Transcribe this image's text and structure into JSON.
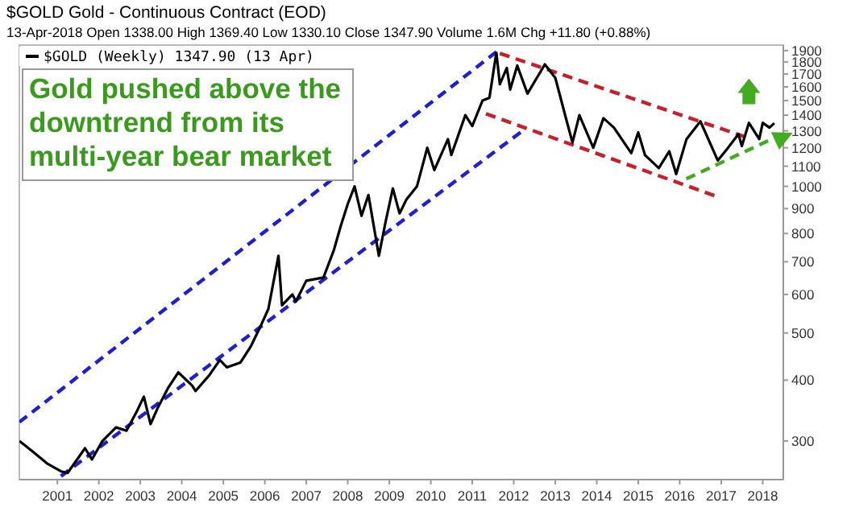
{
  "chart_data": {
    "type": "line",
    "title": "$GOLD Gold - Continuous Contract (EOD)",
    "subtitle": "13-Apr-2018   Open 1338.00  High 1369.40  Low 1330.10  Close 1347.90  Volume 1.6M  Chg +11.80 (+0.88%)",
    "annotations": [
      "Gold pushed above the downtrend from its multi-year bear market"
    ],
    "log": true,
    "legend": "top left",
    "marker": "none",
    "xlim": [
      "2000-02",
      "2018-07"
    ],
    "xticks": [
      "2001",
      "2002",
      "2003",
      "2004",
      "2005",
      "2006",
      "2007",
      "2008",
      "2009",
      "2010",
      "2011",
      "2012",
      "2013",
      "2014",
      "2015",
      "2016",
      "2017",
      "2018"
    ],
    "ylim": [
      250,
      1950
    ],
    "yticks": [
      300,
      400,
      500,
      600,
      700,
      800,
      900,
      1000,
      1100,
      1200,
      1300,
      1400,
      1500,
      1600,
      1700,
      1800,
      1900
    ],
    "series": [
      {
        "name": "$GOLD (Weekly) 1347.90 (13 Apr)",
        "color": "#000000",
        "line_style": "solid",
        "x": [
          "2000-02",
          "2000-06",
          "2000-10",
          "2001-02",
          "2001-04",
          "2001-09",
          "2001-11",
          "2002-02",
          "2002-06",
          "2002-09",
          "2002-12",
          "2003-02",
          "2003-04",
          "2003-06",
          "2003-09",
          "2003-12",
          "2004-04",
          "2004-05",
          "2004-09",
          "2004-12",
          "2005-02",
          "2005-06",
          "2005-09",
          "2005-12",
          "2006-02",
          "2006-05",
          "2006-06",
          "2006-09",
          "2006-10",
          "2007-01",
          "2007-06",
          "2007-09",
          "2007-11",
          "2008-01",
          "2008-03",
          "2008-05",
          "2008-07",
          "2008-10",
          "2008-12",
          "2009-02",
          "2009-04",
          "2009-06",
          "2009-09",
          "2009-12",
          "2010-02",
          "2010-06",
          "2010-07",
          "2010-11",
          "2011-01",
          "2011-04",
          "2011-06",
          "2011-08",
          "2011-09",
          "2011-11",
          "2011-12",
          "2012-02",
          "2012-05",
          "2012-10",
          "2013-01",
          "2013-04",
          "2013-06",
          "2013-08",
          "2013-12",
          "2014-03",
          "2014-06",
          "2014-11",
          "2015-01",
          "2015-03",
          "2015-07",
          "2015-10",
          "2015-12",
          "2016-03",
          "2016-07",
          "2016-12",
          "2017-03",
          "2017-06",
          "2017-07",
          "2017-09",
          "2017-12",
          "2018-01",
          "2018-03",
          "2018-04-13"
        ],
        "values": [
          300,
          285,
          270,
          260,
          258,
          290,
          275,
          300,
          320,
          315,
          345,
          370,
          325,
          350,
          385,
          415,
          390,
          380,
          410,
          440,
          425,
          435,
          470,
          520,
          560,
          720,
          570,
          600,
          580,
          640,
          650,
          740,
          830,
          920,
          1000,
          870,
          960,
          720,
          850,
          990,
          880,
          940,
          1000,
          1200,
          1080,
          1250,
          1160,
          1400,
          1330,
          1500,
          1520,
          1880,
          1620,
          1750,
          1580,
          1770,
          1550,
          1780,
          1670,
          1390,
          1230,
          1400,
          1200,
          1380,
          1320,
          1170,
          1290,
          1160,
          1090,
          1180,
          1060,
          1250,
          1360,
          1130,
          1200,
          1280,
          1210,
          1350,
          1250,
          1350,
          1320,
          1347.9
        ]
      },
      {
        "color": "#1f1fd0",
        "line_style": "dashed",
        "x": [
          "2000-02",
          "2011-08"
        ],
        "values": [
          328,
          1888
        ]
      },
      {
        "color": "#1f1fd0",
        "line_style": "dashed",
        "x": [
          "2001-02",
          "2012-03"
        ],
        "values": [
          254,
          1291
        ]
      },
      {
        "color": "#c8202a",
        "line_style": "dashed",
        "x": [
          "2011-09",
          "2017-08"
        ],
        "values": [
          1875,
          1263
        ]
      },
      {
        "color": "#c8202a",
        "line_style": "dashed",
        "x": [
          "2011-05",
          "2016-11"
        ],
        "values": [
          1409,
          957
        ]
      }
    ]
  }
}
